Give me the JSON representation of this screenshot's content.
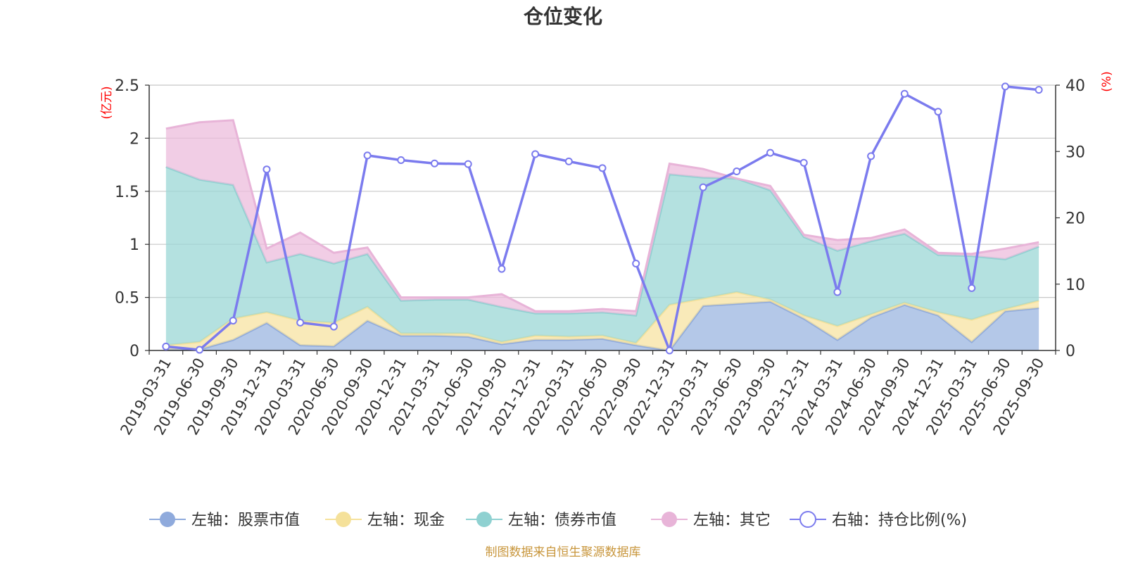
{
  "chart_data": {
    "type": "area",
    "title": "仓位变化",
    "left_axis_unit": "(亿元)",
    "right_axis_unit": "(%)",
    "left_ylim": [
      0,
      2.5
    ],
    "left_ticks": [
      "0",
      "0.5",
      "1",
      "1.5",
      "2",
      "2.5"
    ],
    "right_ylim": [
      0,
      40
    ],
    "right_ticks": [
      "0",
      "10",
      "20",
      "30",
      "40"
    ],
    "categories": [
      "2019-03-31",
      "2019-06-30",
      "2019-09-30",
      "2019-12-31",
      "2020-03-31",
      "2020-06-30",
      "2020-09-30",
      "2020-12-31",
      "2021-03-31",
      "2021-06-30",
      "2021-09-30",
      "2021-12-31",
      "2022-03-31",
      "2022-06-30",
      "2022-09-30",
      "2022-12-31",
      "2023-03-31",
      "2023-06-30",
      "2023-09-30",
      "2023-12-31",
      "2024-03-31",
      "2024-06-30",
      "2024-09-30",
      "2024-12-31",
      "2025-03-31",
      "2025-06-30",
      "2025-09-30"
    ],
    "series": [
      {
        "name": "左轴：股票市值",
        "axis": "left",
        "kind": "stacked-area",
        "color": "#9bb5e0",
        "stroke": "#8faadc",
        "values": [
          0.01,
          0.01,
          0.1,
          0.26,
          0.05,
          0.04,
          0.28,
          0.14,
          0.14,
          0.13,
          0.06,
          0.1,
          0.1,
          0.11,
          0.05,
          0.0,
          0.42,
          0.44,
          0.46,
          0.3,
          0.1,
          0.31,
          0.43,
          0.33,
          0.08,
          0.37,
          0.4
        ]
      },
      {
        "name": "左轴：现金",
        "axis": "left",
        "kind": "stacked-area",
        "color": "#f7e3a1",
        "stroke": "#f5e19a",
        "values": [
          0.04,
          0.07,
          0.2,
          0.1,
          0.23,
          0.22,
          0.13,
          0.02,
          0.02,
          0.03,
          0.02,
          0.04,
          0.03,
          0.03,
          0.02,
          0.43,
          0.07,
          0.11,
          0.02,
          0.03,
          0.13,
          0.03,
          0.02,
          0.03,
          0.21,
          0.02,
          0.07
        ]
      },
      {
        "name": "左轴：债券市值",
        "axis": "left",
        "kind": "stacked-area",
        "color": "#9bd7d6",
        "stroke": "#8fd1d1",
        "values": [
          1.68,
          1.53,
          1.26,
          0.47,
          0.63,
          0.56,
          0.5,
          0.31,
          0.32,
          0.32,
          0.33,
          0.21,
          0.22,
          0.22,
          0.26,
          1.23,
          1.14,
          1.07,
          1.03,
          0.74,
          0.71,
          0.69,
          0.65,
          0.54,
          0.6,
          0.47,
          0.51
        ]
      },
      {
        "name": "左轴：其它",
        "axis": "left",
        "kind": "stacked-area",
        "color": "#ecbcdc",
        "stroke": "#e8b4d8",
        "values": [
          0.36,
          0.54,
          0.61,
          0.13,
          0.2,
          0.1,
          0.06,
          0.03,
          0.02,
          0.02,
          0.12,
          0.02,
          0.02,
          0.03,
          0.04,
          0.1,
          0.08,
          0.0,
          0.04,
          0.02,
          0.1,
          0.03,
          0.04,
          0.02,
          0.02,
          0.1,
          0.04
        ]
      },
      {
        "name": "右轴：持仓比例(%)",
        "axis": "right",
        "kind": "line",
        "color": "#7b7bee",
        "values": [
          0.6,
          0.1,
          4.5,
          27.3,
          4.2,
          3.6,
          29.4,
          28.7,
          28.2,
          28.1,
          12.3,
          29.6,
          28.5,
          27.5,
          13.1,
          0.0,
          24.6,
          27.0,
          29.8,
          28.3,
          8.8,
          29.3,
          38.7,
          36.0,
          9.4,
          39.8,
          39.3
        ]
      }
    ],
    "source": "制图数据来自恒生聚源数据库"
  }
}
